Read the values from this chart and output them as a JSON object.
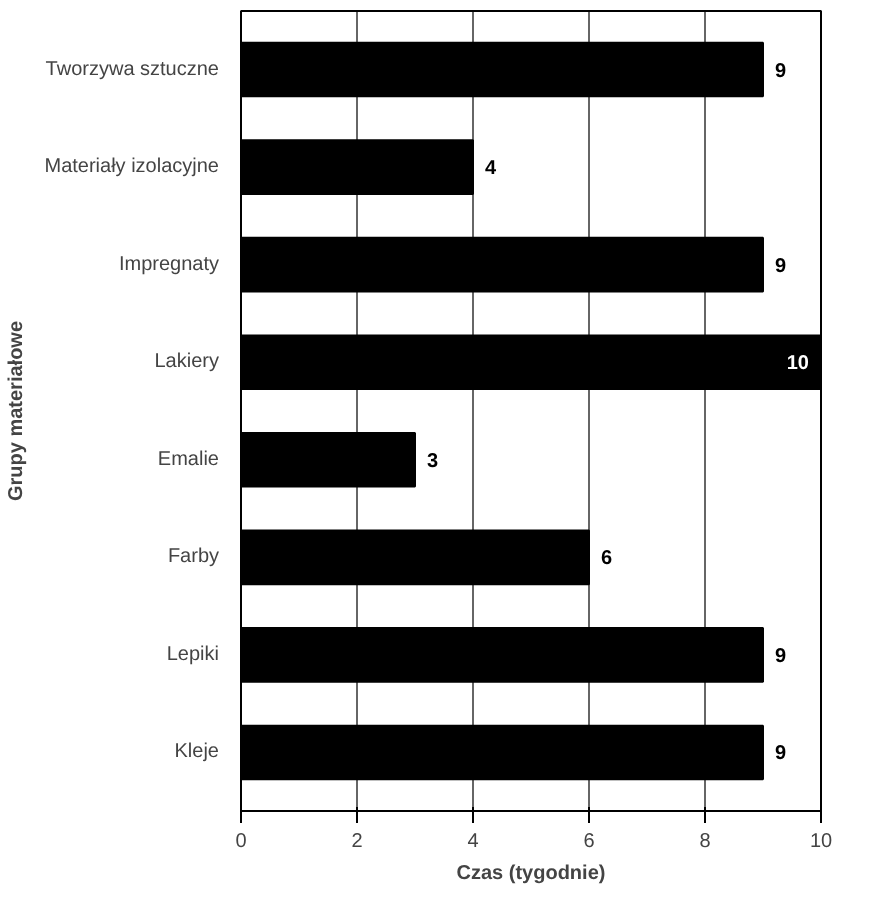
{
  "chart_data": {
    "type": "bar",
    "orientation": "horizontal",
    "xlabel": "Czas (tygodnie)",
    "ylabel": "Grupy materiałowe",
    "categories": [
      "Tworzywa sztuczne",
      "Materiały izolacyjne",
      "Impregnaty",
      "Lakiery",
      "Emalie",
      "Farby",
      "Lepiki",
      "Kleje"
    ],
    "values": [
      9,
      4,
      9,
      10,
      3,
      6,
      9,
      9
    ],
    "color": "#000000",
    "xlim": [
      0,
      10
    ],
    "xticks": [
      0,
      2,
      4,
      6,
      8,
      10
    ],
    "grid": "x",
    "data_labels": true
  }
}
